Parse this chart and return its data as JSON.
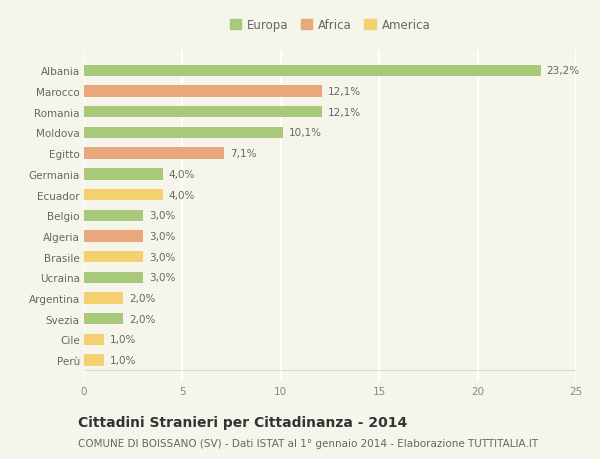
{
  "countries": [
    "Albania",
    "Marocco",
    "Romania",
    "Moldova",
    "Egitto",
    "Germania",
    "Ecuador",
    "Belgio",
    "Algeria",
    "Brasile",
    "Ucraina",
    "Argentina",
    "Svezia",
    "Cile",
    "Perù"
  ],
  "values": [
    23.2,
    12.1,
    12.1,
    10.1,
    7.1,
    4.0,
    4.0,
    3.0,
    3.0,
    3.0,
    3.0,
    2.0,
    2.0,
    1.0,
    1.0
  ],
  "labels": [
    "23,2%",
    "12,1%",
    "12,1%",
    "10,1%",
    "7,1%",
    "4,0%",
    "4,0%",
    "3,0%",
    "3,0%",
    "3,0%",
    "3,0%",
    "2,0%",
    "2,0%",
    "1,0%",
    "1,0%"
  ],
  "continent": [
    "Europa",
    "Africa",
    "Europa",
    "Europa",
    "Africa",
    "Europa",
    "America",
    "Europa",
    "Africa",
    "America",
    "Europa",
    "America",
    "Europa",
    "America",
    "America"
  ],
  "colors": {
    "Europa": "#a8c87a",
    "Africa": "#e8a87c",
    "America": "#f5d06e"
  },
  "legend_items": [
    "Europa",
    "Africa",
    "America"
  ],
  "title": "Cittadini Stranieri per Cittadinanza - 2014",
  "subtitle": "COMUNE DI BOISSANO (SV) - Dati ISTAT al 1° gennaio 2014 - Elaborazione TUTTITALIA.IT",
  "xlim": [
    0,
    25
  ],
  "xticks": [
    0,
    5,
    10,
    15,
    20,
    25
  ],
  "background_color": "#f5f5eb",
  "grid_color": "#ffffff",
  "title_fontsize": 10,
  "subtitle_fontsize": 7.5,
  "label_fontsize": 7.5,
  "tick_fontsize": 7.5,
  "legend_fontsize": 8.5
}
